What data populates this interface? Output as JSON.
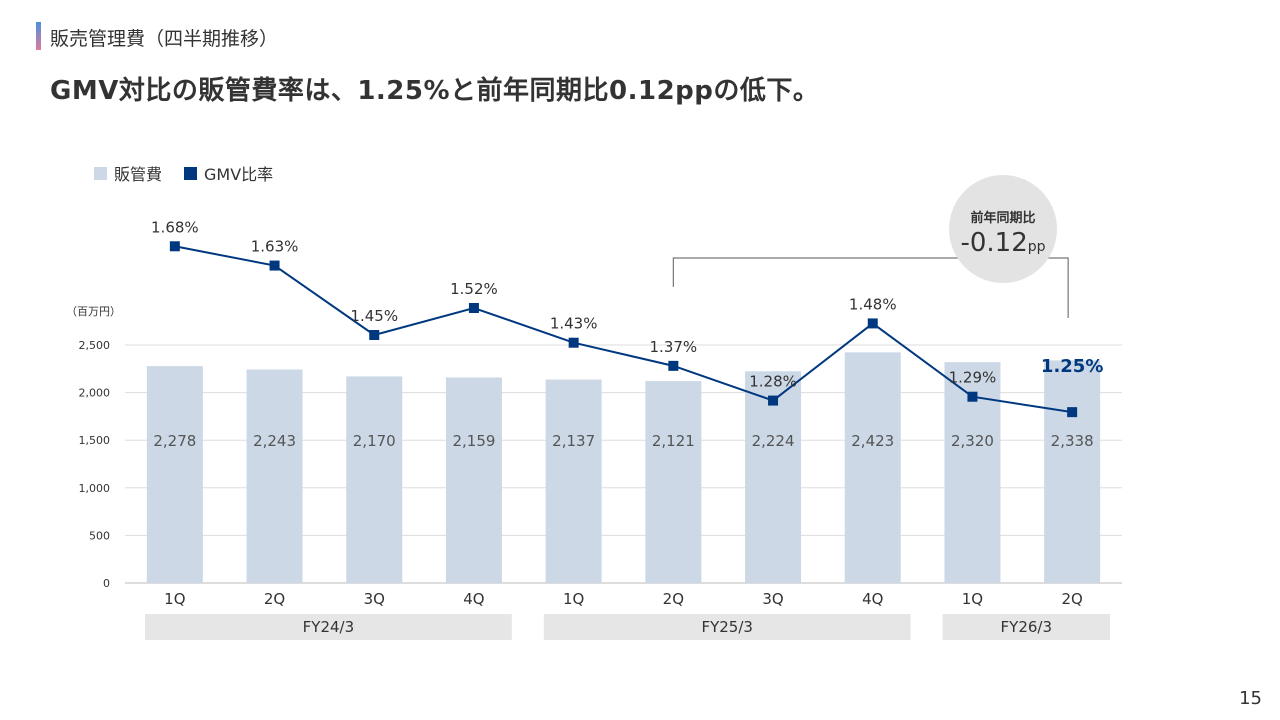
{
  "header": {
    "section_title": "販売管理費（四半期推移）",
    "headline": "GMV対比の販管費率は、1.25%と前年同期比0.12ppの低下。"
  },
  "legend": {
    "bar_label": "販管費",
    "line_label": "GMV比率"
  },
  "page_number": "15",
  "colors": {
    "bar": "#ccd8e6",
    "line": "#003880",
    "highlight_text": "#003880",
    "fiscal_band": "#e6e6e6",
    "grid": "#dddddd",
    "callout_circle": "#e3e3e3"
  },
  "callout": {
    "label": "前年同期比",
    "value": "-0.12",
    "unit": "pp"
  },
  "chart_data": {
    "type": "bar",
    "unit_label": "（百万円）",
    "categories": [
      "1Q",
      "2Q",
      "3Q",
      "4Q",
      "1Q",
      "2Q",
      "3Q",
      "4Q",
      "1Q",
      "2Q"
    ],
    "fiscal_groups": [
      {
        "label": "FY24/3",
        "start": 0,
        "end": 3
      },
      {
        "label": "FY25/3",
        "start": 4,
        "end": 7
      },
      {
        "label": "FY26/3",
        "start": 8,
        "end": 9
      }
    ],
    "series": [
      {
        "name": "販管費",
        "type": "bar",
        "values": [
          2278,
          2243,
          2170,
          2159,
          2137,
          2121,
          2224,
          2423,
          2320,
          2338
        ],
        "value_labels": [
          "2,278",
          "2,243",
          "2,170",
          "2,159",
          "2,137",
          "2,121",
          "2,224",
          "2,423",
          "2,320",
          "2,338"
        ]
      },
      {
        "name": "GMV比率",
        "type": "line",
        "values": [
          1.68,
          1.63,
          1.45,
          1.52,
          1.43,
          1.37,
          1.28,
          1.48,
          1.29,
          1.25
        ],
        "value_labels": [
          "1.68%",
          "1.63%",
          "1.45%",
          "1.52%",
          "1.43%",
          "1.37%",
          "1.28%",
          "1.48%",
          "1.29%",
          "1.25%"
        ]
      }
    ],
    "y_ticks": [
      0,
      500,
      1000,
      1500,
      2000,
      2500
    ],
    "y_tick_labels": [
      "0",
      "500",
      "1,000",
      "1,500",
      "2,000",
      "2,500"
    ],
    "ylim": [
      0,
      2500
    ],
    "y2lim": [
      1.1,
      1.8
    ],
    "grid": true,
    "legend_position": "top-left",
    "highlight_index": 9
  }
}
